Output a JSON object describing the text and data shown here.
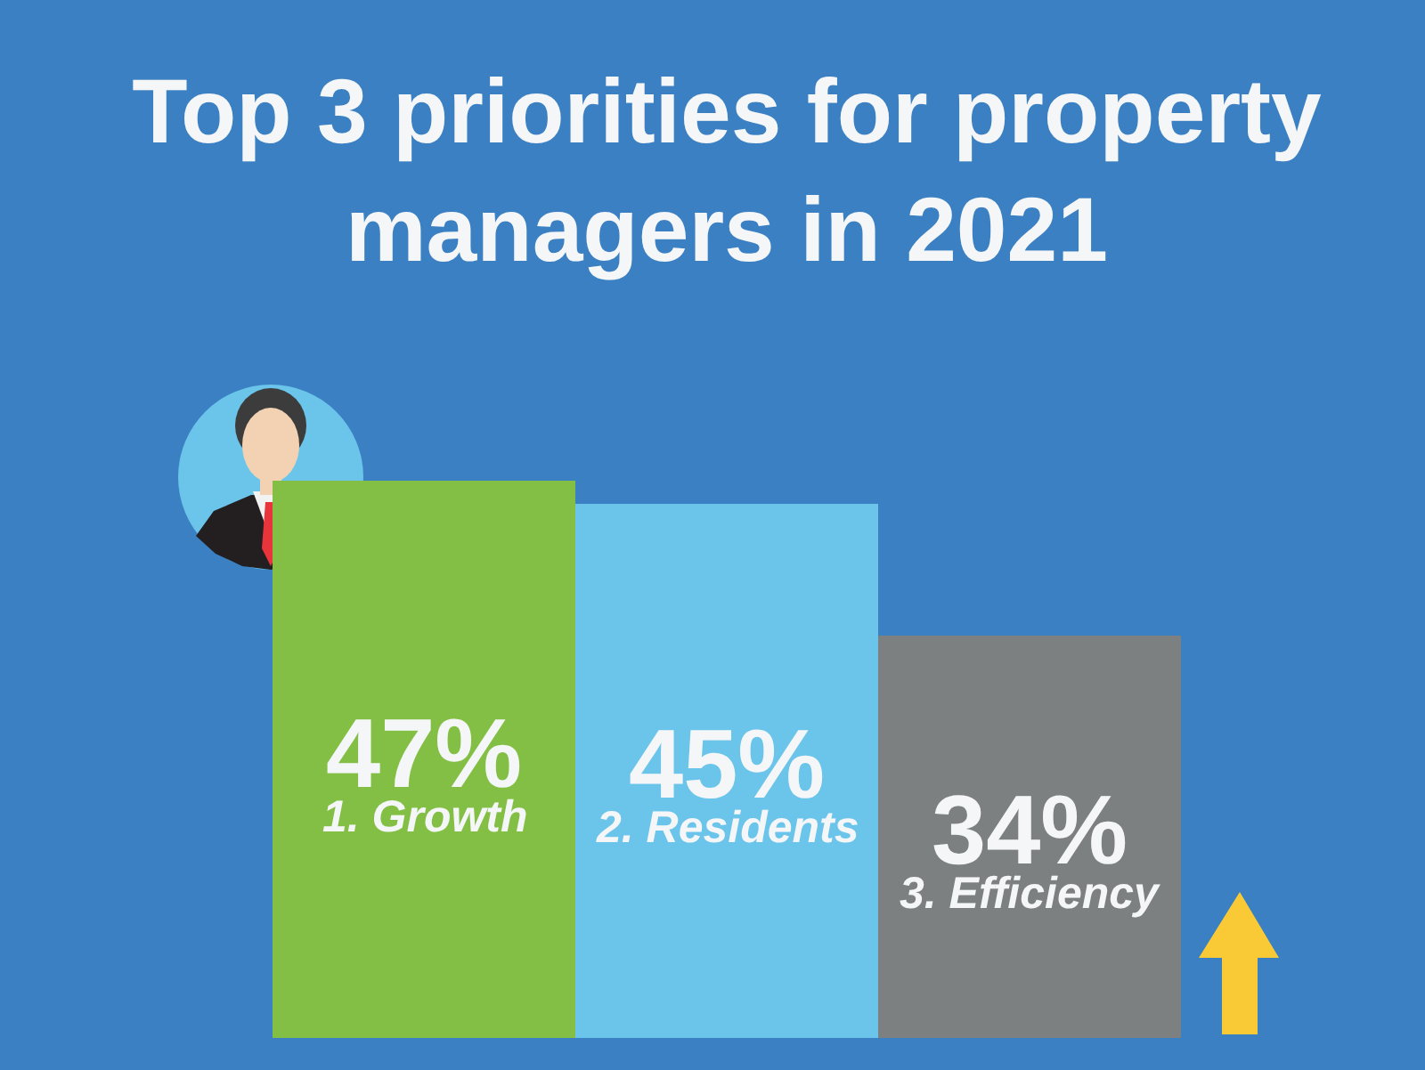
{
  "chart_data": {
    "type": "bar",
    "title": "Top 3 priorities for property managers in 2021",
    "categories": [
      "1. Growth",
      "2. Residents",
      "3. Efficiency"
    ],
    "values": [
      47,
      45,
      34
    ],
    "colors": [
      "#83bf44",
      "#6bc4ea",
      "#7d8081"
    ],
    "value_labels": [
      "47%",
      "45%",
      "34%"
    ],
    "tick_labels": false
  }
}
